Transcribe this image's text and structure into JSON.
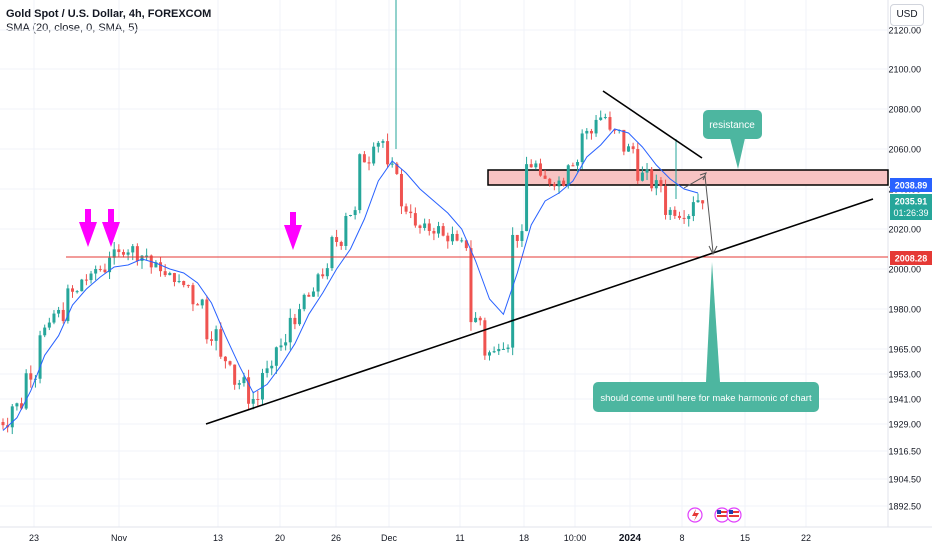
{
  "header": {
    "title": "Gold Spot / U.S. Dollar, 4h, FOREXCOM",
    "indicator": "SMA (20, close, 0, SMA, 5)",
    "currency_button": "USD"
  },
  "colors": {
    "up": "#26a69a",
    "down": "#ef5350",
    "sma": "#2962ff",
    "trendline": "#000000",
    "support_line": "#e53935",
    "resistance_fill": "#f8c3c3",
    "arrows": "#ff00ff",
    "callout": "#4db6a0",
    "price_label_blue": "#2962ff",
    "price_label_green": "#26a69a",
    "price_label_red": "#e53935"
  },
  "chart_data": {
    "type": "candlestick",
    "y_axis": {
      "ticks": [
        "2120.00",
        "2100.00",
        "2080.00",
        "2060.00",
        "2040.00",
        "2020.00",
        "2000.00",
        "1980.00",
        "1965.00",
        "1953.00",
        "1941.00",
        "1929.00",
        "1916.50",
        "1904.50",
        "1892.50"
      ],
      "range": [
        1889,
        2130
      ]
    },
    "x_axis": {
      "ticks": [
        "23",
        "Nov",
        "13",
        "20",
        "26",
        "Dec",
        "11",
        "18",
        "10:00",
        "2024",
        "8",
        "15",
        "22"
      ],
      "bold_ticks": [
        "2024"
      ]
    },
    "price_labels": [
      {
        "value": "2038.89",
        "color": "blue"
      },
      {
        "value": "2035.91",
        "sub": "01:26:39",
        "color": "green"
      },
      {
        "value": "2008.28",
        "color": "red"
      }
    ],
    "series": [
      {
        "name": "SMA (20, close, 0, SMA, 5)",
        "values": [
          1926,
          1932,
          1945,
          1962,
          1970,
          1982,
          1990,
          1996,
          2001,
          2002,
          2005,
          2003,
          2000,
          1998,
          1993,
          1983,
          1970,
          1957,
          1944,
          1948,
          1957,
          1967,
          1978,
          1988,
          2000,
          2010,
          2025,
          2044,
          2054,
          2048,
          2040,
          2034,
          2028,
          2020,
          2004,
          1985,
          1978,
          1998,
          2022,
          2034,
          2038,
          2044,
          2056,
          2062,
          2070,
          2068,
          2061,
          2052,
          2045,
          2040,
          2038
        ]
      }
    ],
    "annotations": [
      "resistance",
      "should come until here for make harmonic of chart"
    ]
  }
}
